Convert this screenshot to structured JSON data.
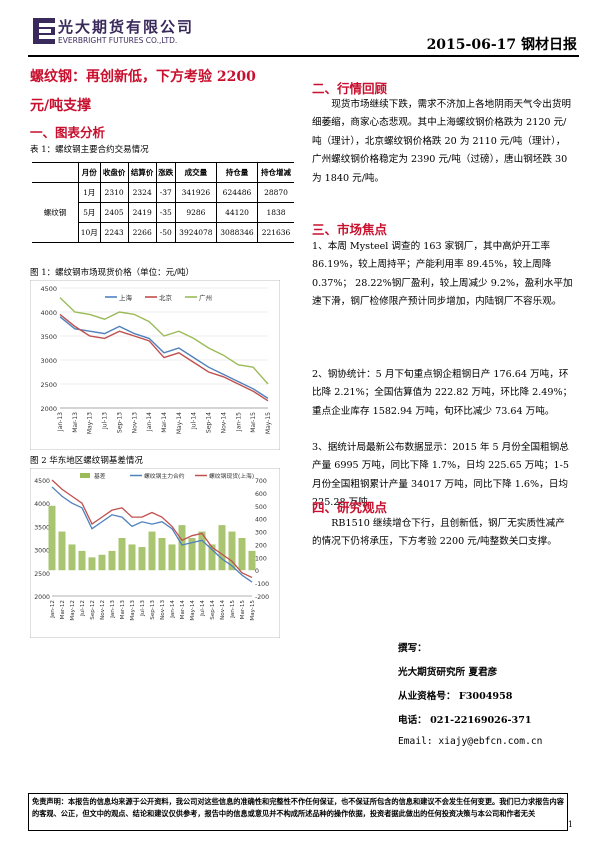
{
  "header": {
    "brand_cn": "光大期货有限公司",
    "brand_en": "EVERBRIGHT FUTURES CO.,LTD.",
    "date_title": "2015-06-17 钢材日报"
  },
  "title": {
    "line1": "螺纹钢：再创新低，下方考验 2200",
    "line2": "元/吨支撑"
  },
  "section1": {
    "heading": "一、图表分析",
    "table_caption": "表 1：螺纹钢主要合约交易情况",
    "table": {
      "headers": [
        "月份",
        "收盘价",
        "结算价",
        "涨跌",
        "成交量",
        "持仓量",
        "持仓增减"
      ],
      "product": "螺纹钢",
      "rows": [
        [
          "1月",
          "2310",
          "2324",
          "-37",
          "341926",
          "624486",
          "28870"
        ],
        [
          "5月",
          "2405",
          "2419",
          "-35",
          "9286",
          "44120",
          "1838"
        ],
        [
          "10月",
          "2243",
          "2266",
          "-50",
          "3924078",
          "3088346",
          "221636"
        ]
      ]
    },
    "chart1_caption": "图 1：螺纹钢市场现货价格（单位：元/吨）",
    "chart2_caption": "图 2 华东地区螺纹钢基差情况"
  },
  "chart_data": [
    {
      "type": "line",
      "title": "",
      "x": [
        "Jan-13",
        "Mar-13",
        "May-13",
        "Jul-13",
        "Sep-13",
        "Nov-13",
        "Jan-14",
        "Mar-14",
        "May-14",
        "Jul-14",
        "Sep-14",
        "Nov-14",
        "Jan-15",
        "Mar-15",
        "May-15"
      ],
      "ylim": [
        2000,
        4500
      ],
      "yticks": [
        "4500",
        "4000",
        "3500",
        "3000",
        "2500",
        "2000"
      ],
      "series": [
        {
          "name": "上海",
          "color": "#4f81bd",
          "values": [
            3900,
            3650,
            3600,
            3550,
            3700,
            3550,
            3450,
            3150,
            3250,
            3050,
            2850,
            2700,
            2550,
            2400,
            2200
          ]
        },
        {
          "name": "北京",
          "color": "#c0504d",
          "values": [
            3950,
            3700,
            3500,
            3450,
            3600,
            3500,
            3400,
            3050,
            3150,
            2950,
            2750,
            2650,
            2500,
            2350,
            2150
          ]
        },
        {
          "name": "广州",
          "color": "#9bbb59",
          "values": [
            4300,
            4000,
            3950,
            3850,
            4000,
            3950,
            3800,
            3500,
            3600,
            3450,
            3250,
            3100,
            2900,
            2850,
            2500
          ]
        }
      ]
    },
    {
      "type": "line",
      "title": "",
      "x": [
        "Jan-12",
        "Mar-12",
        "May-12",
        "Jul-12",
        "Sep-12",
        "Nov-12",
        "Jan-13",
        "Mar-13",
        "May-13",
        "Jul-13",
        "Sep-13",
        "Nov-13",
        "Jan-14",
        "Mar-14",
        "May-14",
        "Jul-14",
        "Sep-14",
        "Nov-14",
        "Jan-15",
        "Mar-15",
        "May-15"
      ],
      "ylim_left": [
        2000,
        4500
      ],
      "ylim_right": [
        -200,
        700
      ],
      "yticks_left": [
        "4500",
        "4000",
        "3500",
        "3000",
        "2500",
        "2000"
      ],
      "yticks_right": [
        "700",
        "600",
        "500",
        "400",
        "300",
        "200",
        "100",
        "0",
        "-100",
        "-200"
      ],
      "series": [
        {
          "name": "基差",
          "color": "#9bbb59",
          "axis": "right",
          "style": "area",
          "values": [
            500,
            300,
            200,
            150,
            100,
            120,
            150,
            250,
            200,
            180,
            300,
            250,
            200,
            350,
            250,
            300,
            200,
            350,
            300,
            250,
            150
          ]
        },
        {
          "name": "螺纹钢主力合约",
          "color": "#4f81bd",
          "axis": "left",
          "values": [
            4350,
            4150,
            4000,
            3900,
            3450,
            3600,
            3750,
            3700,
            3500,
            3600,
            3550,
            3600,
            3450,
            3100,
            3150,
            3200,
            3000,
            2800,
            2650,
            2450,
            2300
          ]
        },
        {
          "name": "螺纹钢现货(上海)",
          "color": "#c0504d",
          "axis": "left",
          "values": [
            4500,
            4300,
            4150,
            4000,
            3550,
            3700,
            3850,
            3900,
            3700,
            3700,
            3800,
            3700,
            3500,
            3200,
            3300,
            3350,
            3050,
            2900,
            2750,
            2500,
            2400
          ]
        }
      ]
    }
  ],
  "section2": {
    "heading": "二、行情回顾",
    "para": "现货市场继续下跌，需求不济加上各地阴雨天气令出货明细萎缩，商家心态悲观。其中上海螺纹钢价格跌为 2120 元/吨（理计），北京螺纹钢价格跌 20 为 2110 元/吨（理计），广州螺纹钢价格稳定为 2390 元/吨（过磅），唐山钢坯跌 30 为 1840 元/吨。"
  },
  "section3": {
    "heading": "三、市场焦点",
    "items": [
      "1、本周 Mysteel 调查的 163 家钢厂，其中高炉开工率 86.19%，较上周持平；产能利用率 89.45%，较上周降 0.37%； 28.22%钢厂盈利，较上周减少 9.2%，盈利水平加速下滑，钢厂检修限产预计同步增加，内陆钢厂不容乐观。",
      "2、钢协统计：5 月下旬重点钢企粗钢日产 176.64 万吨，环比降 2.21%；全国估算值为 222.82 万吨，环比降 2.49%；重点企业库存 1582.94 万吨，旬环比减少 73.64 万吨。",
      "3、据统计局最新公布数据显示：2015 年 5 月份全国粗钢总产量 6995 万吨，同比下降 1.7%，日均 225.65 万吨；1-5 月份全国粗钢累计产量 34017 万吨，同比下降 1.6%，日均 225.28 万吨。"
    ]
  },
  "section4": {
    "heading": "四、研究观点",
    "para": "RB1510 继续增仓下行，且创新低，钢厂无实质性减产的情况下仍将承压，下方考验 2200 元/吨整数关口支撑。"
  },
  "contact": {
    "author_label": "撰写：",
    "author": "光大期货研究所 夏君彦",
    "cert": "从业资格号： F3004958",
    "phone": "电话： 021-22169026-371",
    "email": "Email: xiajy@ebfcn.com.cn"
  },
  "disclaimer": "免责声明：本报告的信息均来源于公开资料，我公司对这些信息的准确性和完整性不作任何保证，也不保证所包含的信息和建议不会发生任何变更。我们已力求报告内容的客观、公正，但文中的观点、结论和建议仅供参考，报告中的信息或意见并不构成所述品种的操作依据，投资者据此做出的任何投资决策与本公司和作者无关",
  "page_number": "1"
}
